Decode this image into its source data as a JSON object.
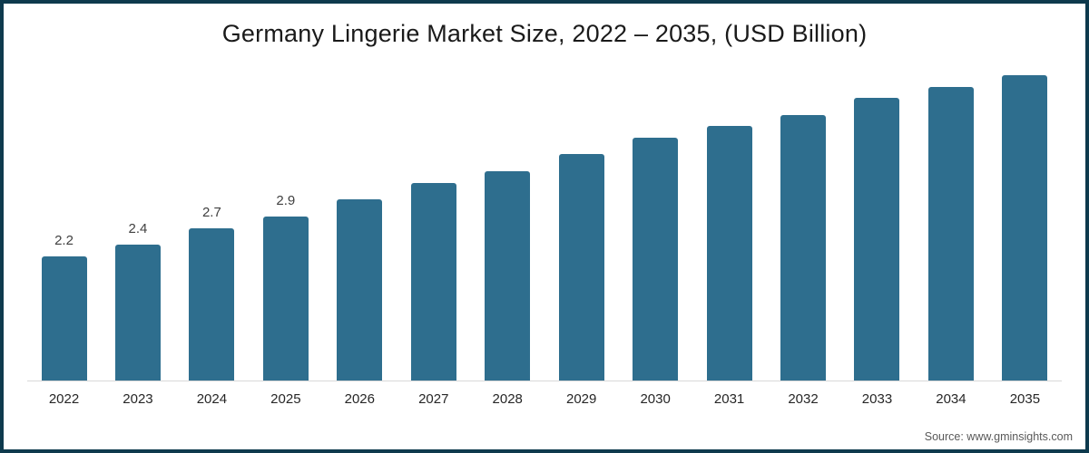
{
  "chart_data": {
    "type": "bar",
    "title": "Germany Lingerie Market Size, 2022 – 2035, (USD Billion)",
    "categories": [
      "2022",
      "2023",
      "2024",
      "2025",
      "2026",
      "2027",
      "2028",
      "2029",
      "2030",
      "2031",
      "2032",
      "2033",
      "2034",
      "2035"
    ],
    "values": [
      2.2,
      2.4,
      2.7,
      2.9,
      3.2,
      3.5,
      3.7,
      4.0,
      4.3,
      4.5,
      4.7,
      5.0,
      5.2,
      5.4
    ],
    "data_labels": [
      "2.2",
      "2.4",
      "2.7",
      "2.9",
      null,
      null,
      null,
      null,
      null,
      null,
      null,
      null,
      null,
      null
    ],
    "xlabel": "",
    "ylabel": "",
    "ylim": [
      0,
      6.6
    ],
    "grid": false,
    "legend": "none",
    "bar_color": "#2e6e8e",
    "frame_border_color": "#0e3a4d",
    "axis_line_color": "#d9d9d9",
    "source": "Source: www.gminsights.com"
  }
}
